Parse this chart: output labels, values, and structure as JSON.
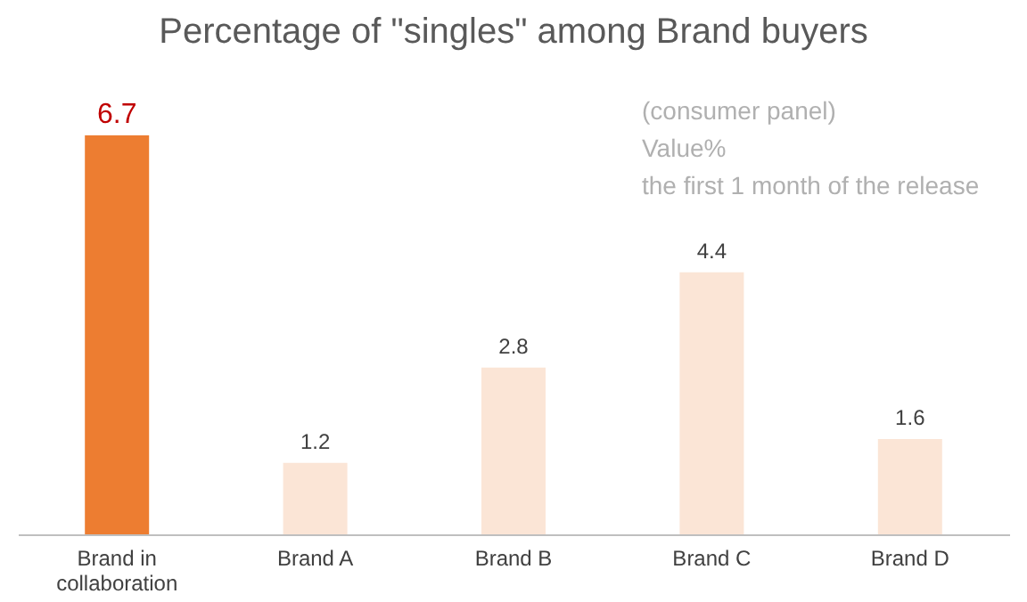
{
  "chart_data": {
    "type": "bar",
    "title": "Percentage of \"singles\" among Brand buyers",
    "categories": [
      "Brand in collaboration",
      "Brand A",
      "Brand B",
      "Brand C",
      "Brand D"
    ],
    "values": [
      6.7,
      1.2,
      2.8,
      4.4,
      1.6
    ],
    "colors": [
      "#ed7d31",
      "#fbe5d6",
      "#fbe5d6",
      "#fbe5d6",
      "#fbe5d6"
    ],
    "data_labels": true,
    "annotations": [
      "(consumer panel)",
      "Value%",
      "the first 1 month of the release"
    ]
  }
}
